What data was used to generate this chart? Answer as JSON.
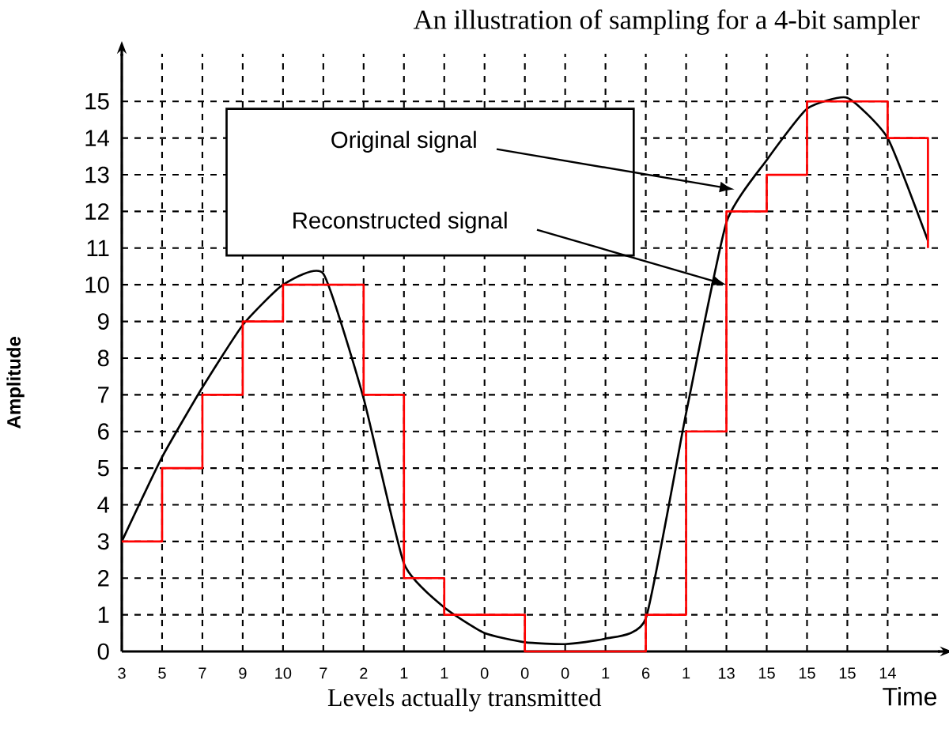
{
  "chart_data": {
    "type": "line",
    "title": "An illustration of sampling for a 4-bit sampler",
    "xlabel": "Levels actually transmitted",
    "ylabel": "Amplitude",
    "categories": [
      "3",
      "5",
      "7",
      "9",
      "10",
      "7",
      "2",
      "1",
      "1",
      "0",
      "0",
      "0",
      "1",
      "6",
      "1",
      "13",
      "15",
      "15",
      "15",
      "14",
      null
    ],
    "ylim": [
      0,
      16.3
    ],
    "yticks": [
      0,
      1,
      2,
      3,
      4,
      5,
      6,
      7,
      8,
      9,
      10,
      11,
      12,
      13,
      14,
      15
    ],
    "grid": true,
    "marker": "none",
    "series": [
      {
        "color": "#000000",
        "values": [
          3,
          5.3,
          7.2,
          8.9,
          10,
          10.3,
          6.9,
          2.4,
          1.2,
          0.5,
          0.25,
          0.2,
          0.35,
          0.9,
          6.5,
          11.7,
          13.4,
          14.8,
          15.1,
          14,
          11.2
        ]
      },
      {
        "type": "step",
        "color": "#ff0000",
        "values": [
          3,
          5,
          7,
          9,
          10,
          10,
          7,
          2,
          1,
          1,
          0,
          0,
          0,
          1,
          6,
          12,
          13,
          15,
          15,
          14,
          11
        ]
      }
    ],
    "annotations": [
      "Time",
      "Original signal",
      "Reconstructed signal"
    ]
  }
}
